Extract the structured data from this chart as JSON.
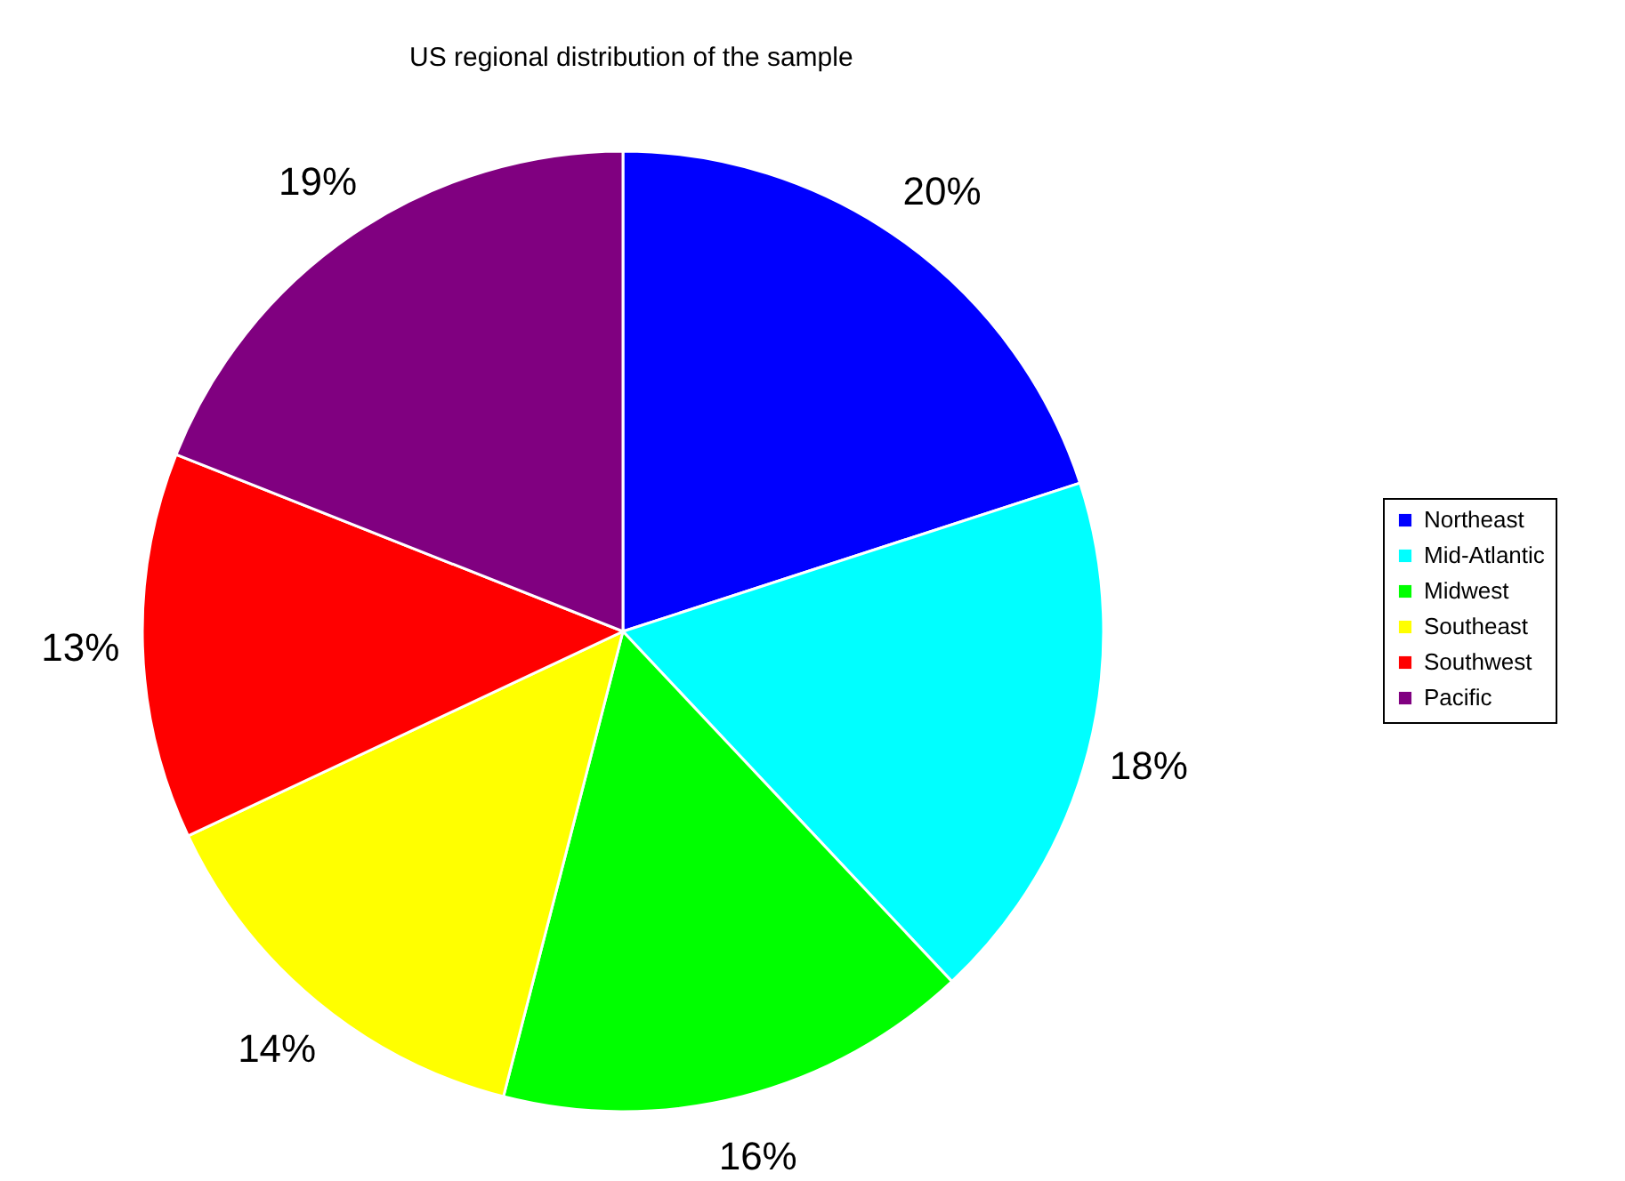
{
  "chart_data": {
    "type": "pie",
    "title": "US regional distribution of the sample",
    "categories": [
      "Northeast",
      "Mid-Atlantic",
      "Midwest",
      "Southeast",
      "Southwest",
      "Pacific"
    ],
    "values": [
      20,
      18,
      16,
      14,
      13,
      19
    ],
    "value_labels": [
      "20%",
      "18%",
      "16%",
      "14%",
      "13%",
      "19%"
    ],
    "colors": [
      "#0000ff",
      "#00ffff",
      "#00ff00",
      "#ffff00",
      "#ff0000",
      "#800080"
    ],
    "legend": "right"
  }
}
